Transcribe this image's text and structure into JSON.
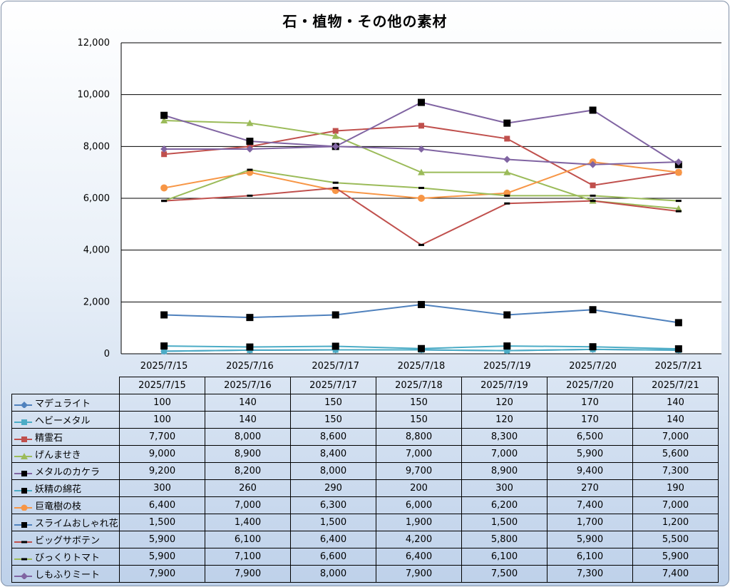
{
  "chart_data": {
    "type": "line",
    "title": "石・植物・その他の素材",
    "x": [
      "2025/7/15",
      "2025/7/16",
      "2025/7/17",
      "2025/7/18",
      "2025/7/19",
      "2025/7/20",
      "2025/7/21"
    ],
    "ylim": [
      0,
      12000
    ],
    "yticks": [
      "0",
      "2,000",
      "4,000",
      "6,000",
      "8,000",
      "10,000",
      "12,000"
    ],
    "grid": true,
    "legend": "data-table",
    "series": [
      {
        "name": "マデュライト",
        "color": "#4f81bd",
        "marker": "diamond",
        "values": [
          100,
          140,
          150,
          150,
          120,
          170,
          140
        ],
        "labels": [
          "100",
          "140",
          "150",
          "150",
          "120",
          "170",
          "140"
        ]
      },
      {
        "name": "ヘビーメタル",
        "color": "#4bacc6",
        "marker": "square",
        "values": [
          100,
          140,
          150,
          150,
          120,
          170,
          140
        ],
        "labels": [
          "100",
          "140",
          "150",
          "150",
          "120",
          "170",
          "140"
        ]
      },
      {
        "name": "精霊石",
        "color": "#c0504d",
        "marker": "square",
        "values": [
          7700,
          8000,
          8600,
          8800,
          8300,
          6500,
          7000
        ],
        "labels": [
          "7,700",
          "8,000",
          "8,600",
          "8,800",
          "8,300",
          "6,500",
          "7,000"
        ]
      },
      {
        "name": "げんませき",
        "color": "#9bbb59",
        "marker": "triangle",
        "values": [
          9000,
          8900,
          8400,
          7000,
          7000,
          5900,
          5600
        ],
        "labels": [
          "9,000",
          "8,900",
          "8,400",
          "7,000",
          "7,000",
          "5,900",
          "5,600"
        ]
      },
      {
        "name": "メタルのカケラ",
        "color": "#8064a2",
        "marker": "blacksquare",
        "values": [
          9200,
          8200,
          8000,
          9700,
          8900,
          9400,
          7300
        ],
        "labels": [
          "9,200",
          "8,200",
          "8,000",
          "9,700",
          "8,900",
          "9,400",
          "7,300"
        ]
      },
      {
        "name": "妖精の綿花",
        "color": "#4bacc6",
        "marker": "blacksquare",
        "values": [
          300,
          260,
          290,
          200,
          300,
          270,
          190
        ],
        "labels": [
          "300",
          "260",
          "290",
          "200",
          "300",
          "270",
          "190"
        ]
      },
      {
        "name": "巨竜樹の枝",
        "color": "#f79646",
        "marker": "circle",
        "values": [
          6400,
          7000,
          6300,
          6000,
          6200,
          7400,
          7000
        ],
        "labels": [
          "6,400",
          "7,000",
          "6,300",
          "6,000",
          "6,200",
          "7,400",
          "7,000"
        ]
      },
      {
        "name": "スライムおしゃれ花",
        "color": "#4f81bd",
        "marker": "blacksquare",
        "values": [
          1500,
          1400,
          1500,
          1900,
          1500,
          1700,
          1200
        ],
        "labels": [
          "1,500",
          "1,400",
          "1,500",
          "1,900",
          "1,500",
          "1,700",
          "1,200"
        ]
      },
      {
        "name": "ビッグサボテン",
        "color": "#c0504d",
        "marker": "dash",
        "values": [
          5900,
          6100,
          6400,
          4200,
          5800,
          5900,
          5500
        ],
        "labels": [
          "5,900",
          "6,100",
          "6,400",
          "4,200",
          "5,800",
          "5,900",
          "5,500"
        ]
      },
      {
        "name": "びっくりトマト",
        "color": "#9bbb59",
        "marker": "dash",
        "values": [
          5900,
          7100,
          6600,
          6400,
          6100,
          6100,
          5900
        ],
        "labels": [
          "5,900",
          "7,100",
          "6,600",
          "6,400",
          "6,100",
          "6,100",
          "5,900"
        ]
      },
      {
        "name": "しもふりミート",
        "color": "#8064a2",
        "marker": "diamond",
        "values": [
          7900,
          7900,
          8000,
          7900,
          7500,
          7300,
          7400
        ],
        "labels": [
          "7,900",
          "7,900",
          "8,000",
          "7,900",
          "7,500",
          "7,300",
          "7,400"
        ]
      }
    ]
  }
}
